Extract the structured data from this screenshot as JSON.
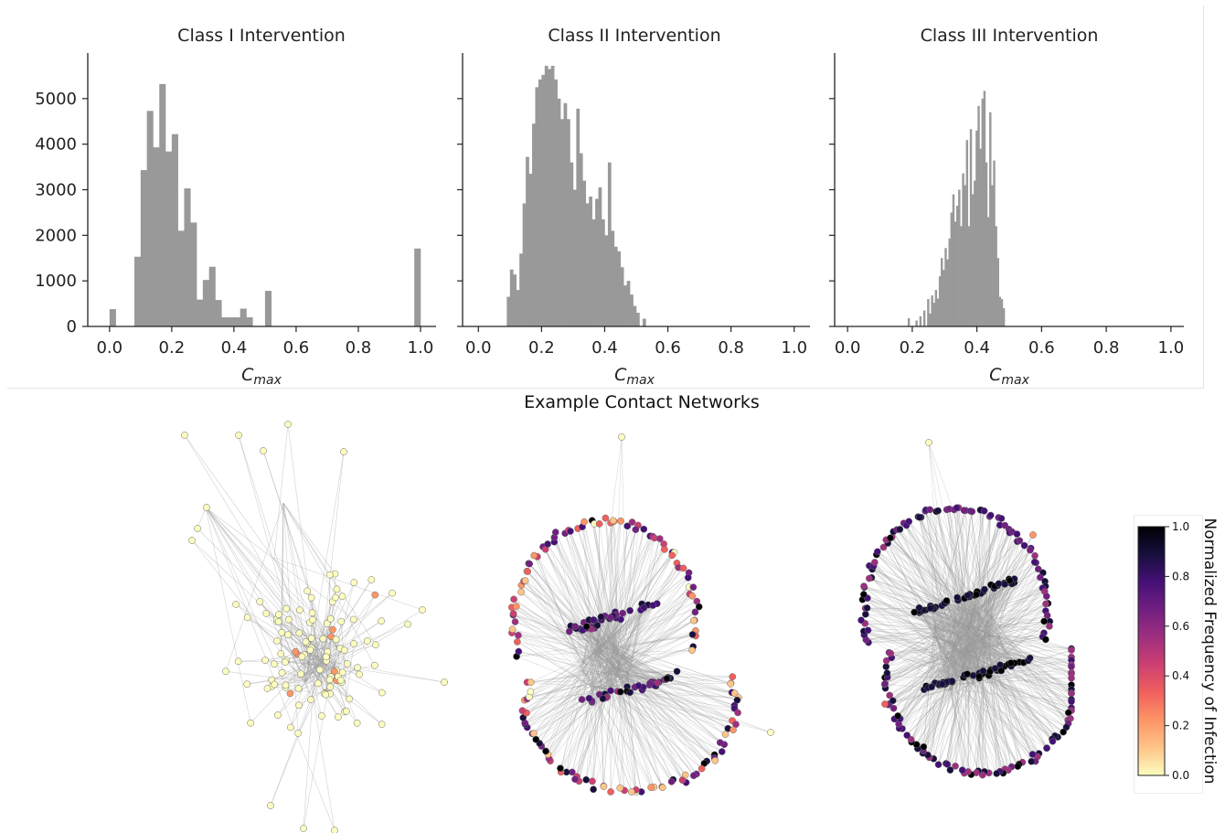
{
  "colors": {
    "bar": "#999999",
    "axis": "#222222",
    "edge": "#9a9a9a",
    "node_stroke": "#7a7a50"
  },
  "chart_data": [
    {
      "type": "bar",
      "title": "Class I Intervention",
      "xlabel_base": "C",
      "xlabel_sub": "max",
      "ylabel": "",
      "xlim": [
        -0.07,
        1.05
      ],
      "ylim": [
        0,
        6000
      ],
      "xticks": [
        "0.0",
        "0.2",
        "0.4",
        "0.6",
        "0.8",
        "1.0"
      ],
      "yticks": [
        "0",
        "1000",
        "2000",
        "3000",
        "4000",
        "5000"
      ],
      "bin_width": 0.02,
      "bins": [
        [
          0.0,
          380
        ],
        [
          0.08,
          1530
        ],
        [
          0.1,
          3430
        ],
        [
          0.12,
          4730
        ],
        [
          0.14,
          3930
        ],
        [
          0.16,
          5320
        ],
        [
          0.18,
          3840
        ],
        [
          0.2,
          4220
        ],
        [
          0.22,
          2100
        ],
        [
          0.24,
          3030
        ],
        [
          0.26,
          2280
        ],
        [
          0.28,
          590
        ],
        [
          0.3,
          1020
        ],
        [
          0.32,
          1310
        ],
        [
          0.34,
          580
        ],
        [
          0.36,
          200
        ],
        [
          0.38,
          200
        ],
        [
          0.4,
          200
        ],
        [
          0.42,
          390
        ],
        [
          0.44,
          200
        ],
        [
          0.5,
          780
        ],
        [
          0.98,
          1710
        ]
      ]
    },
    {
      "type": "bar",
      "title": "Class II Intervention",
      "xlabel_base": "C",
      "xlabel_sub": "max",
      "ylabel": "",
      "xlim": [
        -0.05,
        1.05
      ],
      "ylim": [
        0,
        6000
      ],
      "xticks": [
        "0.0",
        "0.2",
        "0.4",
        "0.6",
        "0.8",
        "1.0"
      ],
      "yticks": [],
      "bin_width": 0.01,
      "bins": [
        [
          0.09,
          650
        ],
        [
          0.1,
          1250
        ],
        [
          0.11,
          1140
        ],
        [
          0.12,
          800
        ],
        [
          0.13,
          1600
        ],
        [
          0.14,
          2700
        ],
        [
          0.15,
          3720
        ],
        [
          0.16,
          3350
        ],
        [
          0.17,
          4450
        ],
        [
          0.18,
          5250
        ],
        [
          0.19,
          5420
        ],
        [
          0.2,
          5520
        ],
        [
          0.21,
          5720
        ],
        [
          0.22,
          5650
        ],
        [
          0.23,
          5720
        ],
        [
          0.24,
          5420
        ],
        [
          0.25,
          5000
        ],
        [
          0.26,
          4550
        ],
        [
          0.27,
          4900
        ],
        [
          0.28,
          4550
        ],
        [
          0.29,
          3600
        ],
        [
          0.3,
          3000
        ],
        [
          0.31,
          4780
        ],
        [
          0.32,
          3800
        ],
        [
          0.33,
          3200
        ],
        [
          0.34,
          2700
        ],
        [
          0.35,
          2850
        ],
        [
          0.36,
          2350
        ],
        [
          0.37,
          2800
        ],
        [
          0.38,
          3050
        ],
        [
          0.39,
          2350
        ],
        [
          0.4,
          2000
        ],
        [
          0.41,
          3600
        ],
        [
          0.42,
          2100
        ],
        [
          0.43,
          1750
        ],
        [
          0.44,
          1650
        ],
        [
          0.45,
          1300
        ],
        [
          0.46,
          900
        ],
        [
          0.47,
          1000
        ],
        [
          0.48,
          700
        ],
        [
          0.49,
          450
        ],
        [
          0.5,
          300
        ],
        [
          0.52,
          170
        ]
      ]
    },
    {
      "type": "bar",
      "title": "Class III Intervention",
      "xlabel_base": "C",
      "xlabel_sub": "max",
      "ylabel": "",
      "xlim": [
        -0.04,
        1.04
      ],
      "ylim": [
        0,
        6000
      ],
      "xticks": [
        "0.0",
        "0.2",
        "0.4",
        "0.6",
        "0.8",
        "1.0"
      ],
      "yticks": [],
      "bin_width": 0.006,
      "bins": [
        [
          0.186,
          180
        ],
        [
          0.21,
          130
        ],
        [
          0.222,
          220
        ],
        [
          0.234,
          350
        ],
        [
          0.246,
          600
        ],
        [
          0.252,
          280
        ],
        [
          0.258,
          680
        ],
        [
          0.264,
          520
        ],
        [
          0.27,
          800
        ],
        [
          0.276,
          610
        ],
        [
          0.282,
          1100
        ],
        [
          0.288,
          1500
        ],
        [
          0.294,
          1240
        ],
        [
          0.3,
          1720
        ],
        [
          0.306,
          1470
        ],
        [
          0.312,
          1930
        ],
        [
          0.318,
          2500
        ],
        [
          0.324,
          2900
        ],
        [
          0.33,
          2300
        ],
        [
          0.336,
          2650
        ],
        [
          0.342,
          3000
        ],
        [
          0.348,
          2200
        ],
        [
          0.354,
          3360
        ],
        [
          0.36,
          3100
        ],
        [
          0.366,
          4090
        ],
        [
          0.372,
          2200
        ],
        [
          0.378,
          4330
        ],
        [
          0.384,
          2900
        ],
        [
          0.39,
          3200
        ],
        [
          0.396,
          4300
        ],
        [
          0.402,
          4840
        ],
        [
          0.408,
          3900
        ],
        [
          0.414,
          5000
        ],
        [
          0.42,
          5170
        ],
        [
          0.426,
          3600
        ],
        [
          0.432,
          2400
        ],
        [
          0.438,
          4700
        ],
        [
          0.444,
          3100
        ],
        [
          0.45,
          3640
        ],
        [
          0.456,
          2200
        ],
        [
          0.462,
          1500
        ],
        [
          0.468,
          650
        ],
        [
          0.474,
          600
        ],
        [
          0.48,
          400
        ]
      ]
    }
  ],
  "networks": {
    "title": "Example Contact Networks"
  },
  "colorbar": {
    "label": "Normalized Frequency of Infection",
    "ticks": [
      "0.0",
      "0.2",
      "0.4",
      "0.6",
      "0.8",
      "1.0"
    ],
    "stops": [
      "#fcfdbf",
      "#fec488",
      "#fd9567",
      "#f1605d",
      "#cd4071",
      "#9e2f7f",
      "#721f81",
      "#451077",
      "#180f3d",
      "#000004"
    ]
  }
}
